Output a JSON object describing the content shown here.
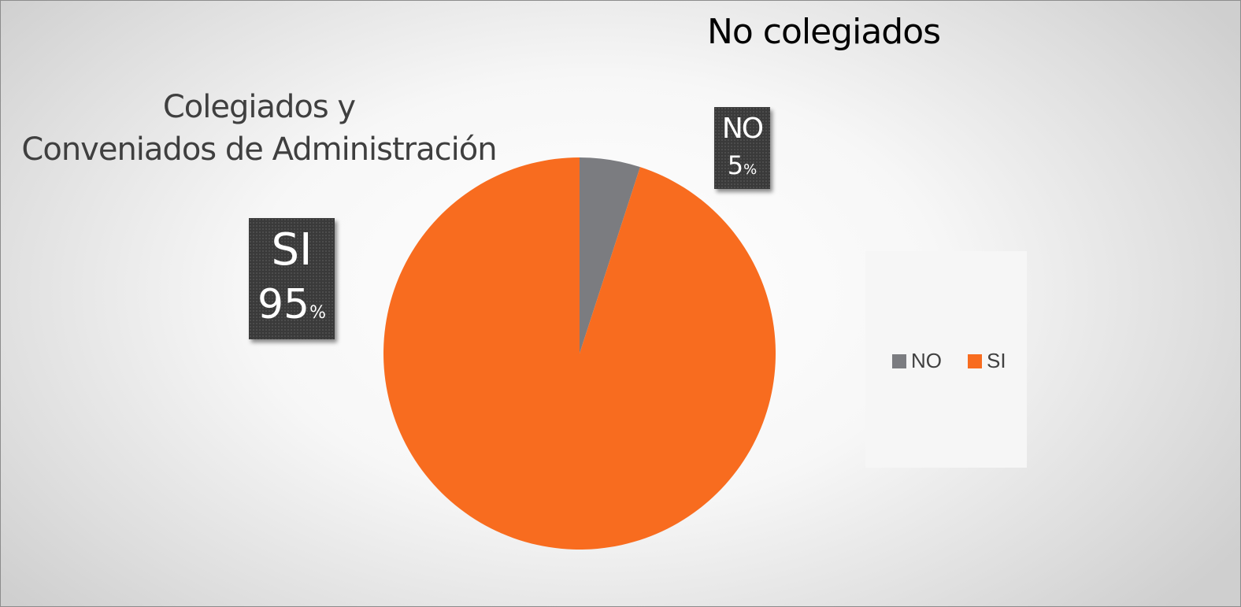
{
  "chart_data": {
    "type": "pie",
    "title": "No colegiados",
    "annotation": [
      "Colegiados y",
      "Conveniados de Administración"
    ],
    "categories": [
      "NO",
      "SI"
    ],
    "values": [
      5,
      95
    ],
    "unit": "%",
    "colors": [
      "#7b7c80",
      "#f86c1f"
    ],
    "legend_position": "right",
    "start_angle_deg": 0,
    "direction": "clockwise"
  }
}
